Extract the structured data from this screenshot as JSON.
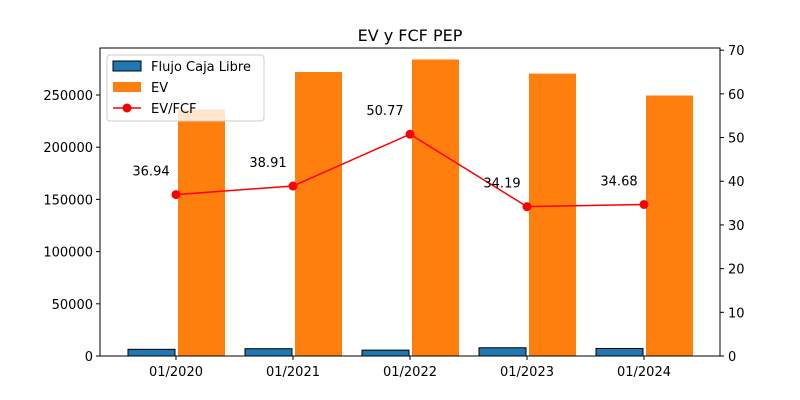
{
  "chart_data": {
    "type": "bar",
    "title": "EV y FCF PEP",
    "categories": [
      "01/2020",
      "01/2021",
      "01/2022",
      "01/2023",
      "01/2024"
    ],
    "series": [
      {
        "name": "Flujo Caja Libre",
        "type": "bar",
        "axis": "left",
        "color": "#1f77b4",
        "values": [
          6400,
          7000,
          5600,
          7900,
          7200
        ]
      },
      {
        "name": "EV",
        "type": "bar",
        "axis": "left",
        "color": "#ff7f0e",
        "values": [
          236000,
          272000,
          284000,
          270500,
          249500
        ]
      },
      {
        "name": "EV/FCF",
        "type": "line",
        "axis": "right",
        "color": "#ff0000",
        "values": [
          36.94,
          38.91,
          50.77,
          34.19,
          34.68
        ]
      }
    ],
    "data_labels": [
      "36.94",
      "38.91",
      "50.77",
      "34.19",
      "34.68"
    ],
    "y_left": {
      "ylim": [
        0,
        295000
      ],
      "ticks": [
        0,
        50000,
        100000,
        150000,
        200000,
        250000
      ],
      "tick_labels": [
        "0",
        "50000",
        "100000",
        "150000",
        "200000",
        "250000"
      ]
    },
    "y_right": {
      "ylim": [
        0,
        70.5
      ],
      "ticks": [
        0,
        10,
        20,
        30,
        40,
        50,
        60,
        70
      ],
      "tick_labels": [
        "0",
        "10",
        "20",
        "30",
        "40",
        "50",
        "60",
        "70"
      ]
    },
    "legend": {
      "placement": "top-left",
      "entries": [
        "Flujo Caja Libre",
        "EV",
        "EV/FCF"
      ]
    },
    "grid": false
  }
}
